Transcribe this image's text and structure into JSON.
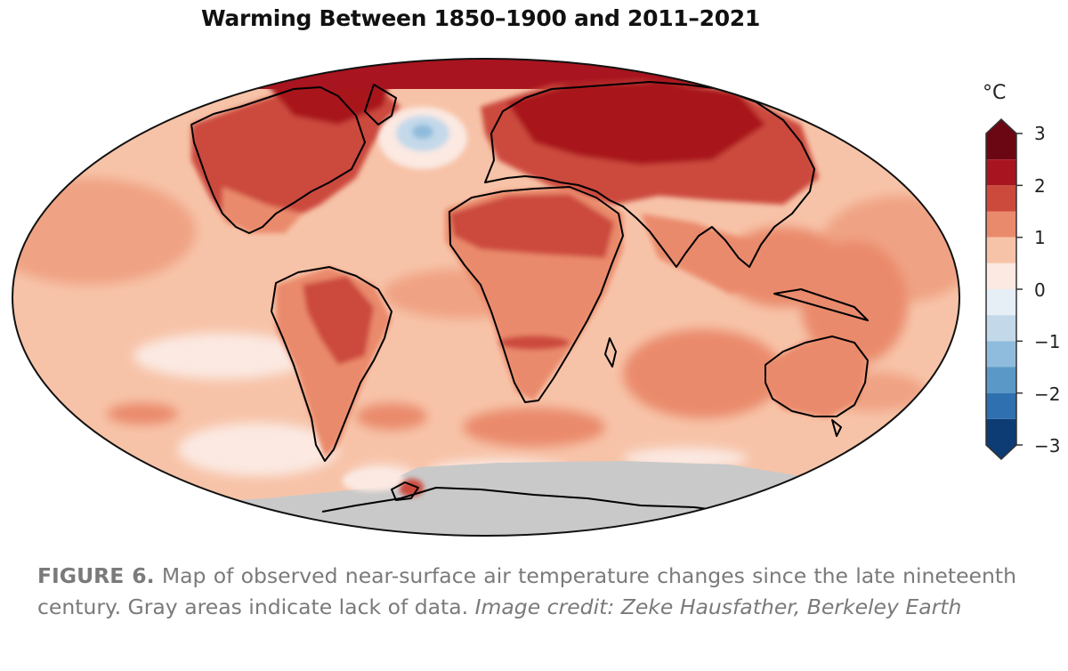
{
  "title": "Warming Between 1850–1900 and 2011–2021",
  "legend": {
    "unit": "°C",
    "ticks": [
      "3",
      "2",
      "1",
      "0",
      "−1",
      "−2",
      "−3"
    ],
    "bins": [
      {
        "from": 2.5,
        "to": 3.0,
        "color": "#6b0713"
      },
      {
        "from": 2.0,
        "to": 2.5,
        "color": "#a8141f"
      },
      {
        "from": 1.5,
        "to": 2.0,
        "color": "#cc4a3c"
      },
      {
        "from": 1.0,
        "to": 1.5,
        "color": "#ea8a6c"
      },
      {
        "from": 0.5,
        "to": 1.0,
        "color": "#f7c3a8"
      },
      {
        "from": 0.0,
        "to": 0.5,
        "color": "#fbe9e2"
      },
      {
        "from": -0.5,
        "to": 0.0,
        "color": "#e6eef6"
      },
      {
        "from": -1.0,
        "to": -0.5,
        "color": "#c3d9ea"
      },
      {
        "from": -1.5,
        "to": -1.0,
        "color": "#8fbcdc"
      },
      {
        "from": -2.0,
        "to": -1.5,
        "color": "#5a98c7"
      },
      {
        "from": -2.5,
        "to": -2.0,
        "color": "#2f70b0"
      },
      {
        "from": -3.0,
        "to": -2.5,
        "color": "#0d3b73"
      }
    ],
    "no_data_color": "#c9c9c9"
  },
  "caption": {
    "label": "FIGURE 6.",
    "text": "Map of observed near-surface air temperature changes since the late nineteenth century. Gray areas indicate lack of data.",
    "credit": "Image credit: Zeke Hausfather, Berkeley Earth"
  }
}
